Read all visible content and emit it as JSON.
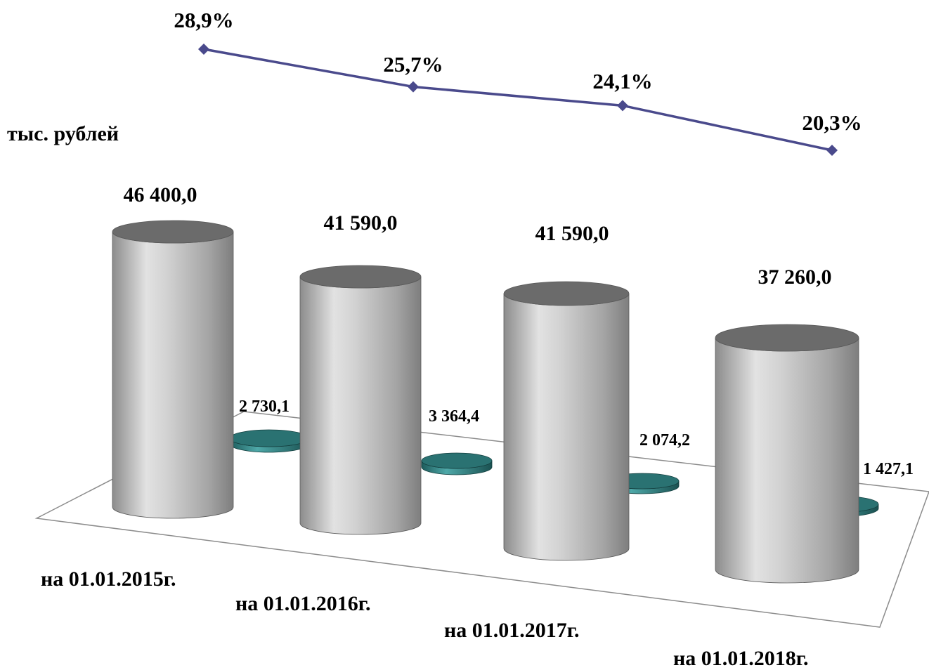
{
  "unit_label": "тыс. рублей",
  "chart_data": {
    "type": "bar",
    "title": "",
    "categories": [
      "на 01.01.2015г.",
      "на 01.01.2016г.",
      "на 01.01.2017г.",
      "на 01.01.2018г."
    ],
    "series": [
      {
        "values": [
          46400.0,
          41590.0,
          41590.0,
          37260.0
        ],
        "labels": [
          "46 400,0",
          "41 590,0",
          "41 590,0",
          "37 260,0"
        ],
        "color": "#a6a6a6",
        "shape": "cylinder"
      },
      {
        "values": [
          2730.1,
          3364.4,
          2074.2,
          1427.1
        ],
        "labels": [
          "2 730,1",
          "3 364,4",
          "2 074,2",
          "1 427,1"
        ],
        "color": "#2e8080",
        "shape": "cylinder"
      }
    ],
    "line_series": {
      "type": "line",
      "values": [
        28.9,
        25.7,
        24.1,
        20.3
      ],
      "labels": [
        "28,9%",
        "25,7%",
        "24,1%",
        "20,3%"
      ],
      "color": "#4a4a8c",
      "marker": "diamond"
    },
    "grid": false,
    "legend": "none"
  }
}
